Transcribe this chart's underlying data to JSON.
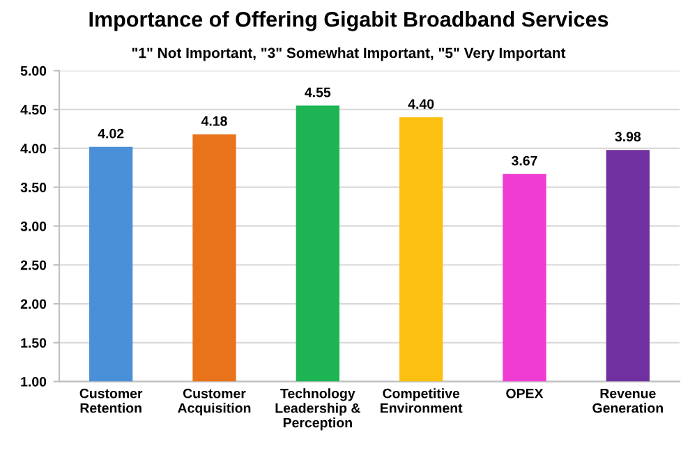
{
  "chart_data": {
    "type": "bar",
    "title": "Importance of Offering Gigabit Broadband Services",
    "subtitle": "\"1\" Not Important, \"3\" Somewhat Important, \"5\" Very Important",
    "categories": [
      "Customer\nRetention",
      "Customer\nAcquisition",
      "Technology\nLeadership &\nPerception",
      "Competitive\nEnvironment",
      "OPEX",
      "Revenue\nGeneration"
    ],
    "values": [
      4.02,
      4.18,
      4.55,
      4.4,
      3.67,
      3.98
    ],
    "colors": [
      "#4a90d9",
      "#e8731a",
      "#1db554",
      "#fcc010",
      "#f03cd2",
      "#7030a0"
    ],
    "ylim": [
      1.0,
      5.0
    ],
    "yticks": [
      {
        "value": 1.0,
        "label": "1.00"
      },
      {
        "value": 1.5,
        "label": "1.50"
      },
      {
        "value": 2.0,
        "label": "2.00"
      },
      {
        "value": 2.5,
        "label": "2.50"
      },
      {
        "value": 3.0,
        "label": "3.00"
      },
      {
        "value": 3.5,
        "label": "3.50"
      },
      {
        "value": 4.0,
        "label": "4.00"
      },
      {
        "value": 4.5,
        "label": "4.50"
      },
      {
        "value": 5.0,
        "label": "5.00"
      }
    ],
    "value_labels": [
      "4.02",
      "4.18",
      "4.55",
      "4.40",
      "3.67",
      "3.98"
    ],
    "grid": "y"
  }
}
